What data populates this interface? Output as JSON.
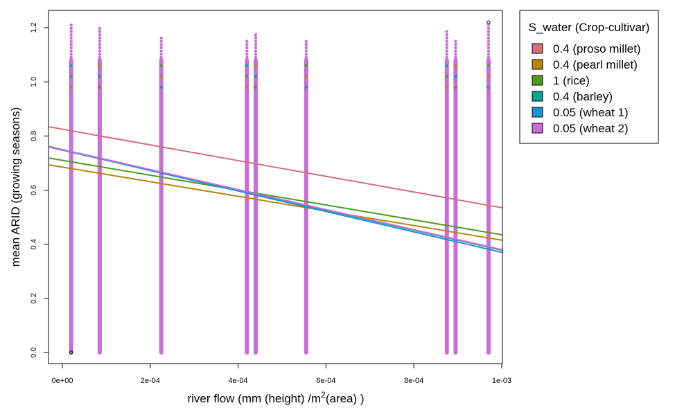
{
  "chart_data": {
    "type": "scatter",
    "title": "",
    "xlabel": "river flow (mm (height) /m",
    "xlabel_sup": "2",
    "xlabel_tail": "(area) )",
    "ylabel": "mean ARID (growing seasons)",
    "xlim": [
      0,
      0.001
    ],
    "ylim": [
      0,
      1.2
    ],
    "x_ticks": [
      0,
      0.0002,
      0.0004,
      0.0006,
      0.0008,
      0.001
    ],
    "x_tick_labels": [
      "0e+00",
      "2e-04",
      "4e-04",
      "6e-04",
      "8e-04",
      "1e-03"
    ],
    "y_ticks": [
      0,
      0.2,
      0.4,
      0.6,
      0.8,
      1.0,
      1.2
    ],
    "y_tick_labels": [
      "0.0",
      "0.2",
      "0.4",
      "0.6",
      "0.8",
      "1.0",
      "1.2"
    ],
    "grid": false,
    "legend_position": "right",
    "legend": {
      "title": "S_water (Crop-cultivar)",
      "entries": [
        {
          "label": "0.4 (proso millet)",
          "color": "#D66F7C"
        },
        {
          "label": "0.4 (pearl millet)",
          "color": "#B8860B"
        },
        {
          "label": "1 (rice)",
          "color": "#4E9A1F"
        },
        {
          "label": "0.4 (barley)",
          "color": "#00A693"
        },
        {
          "label": "0.05 (wheat 1)",
          "color": "#1E90D6"
        },
        {
          "label": "0.05 (wheat 2)",
          "color": "#C86ED6"
        }
      ]
    },
    "point_columns_x": [
      2e-05,
      8.5e-05,
      0.000225,
      0.00042,
      0.00044,
      0.000555,
      0.000875,
      0.000895,
      0.00097
    ],
    "column_tops": [
      1.22,
      1.2,
      1.17,
      1.16,
      1.18,
      1.16,
      1.19,
      1.16,
      1.22
    ],
    "series": [
      {
        "name": "0.4 (proso millet)",
        "color": "#D66F7C",
        "regression": {
          "intercept": 0.825,
          "slope": -290
        }
      },
      {
        "name": "0.4 (pearl millet)",
        "color": "#B8860B",
        "regression": {
          "intercept": 0.685,
          "slope": -270
        }
      },
      {
        "name": "1 (rice)",
        "color": "#4E9A1F",
        "regression": {
          "intercept": 0.71,
          "slope": -275
        }
      },
      {
        "name": "0.4 (barley)",
        "color": "#00A693",
        "regression": {
          "intercept": 0.748,
          "slope": -370
        }
      },
      {
        "name": "0.05 (wheat 1)",
        "color": "#1E90D6",
        "regression": {
          "intercept": 0.748,
          "slope": -378
        }
      },
      {
        "name": "0.05 (wheat 2)",
        "color": "#C86ED6",
        "regression": {
          "intercept": 0.75,
          "slope": -370
        }
      }
    ]
  }
}
